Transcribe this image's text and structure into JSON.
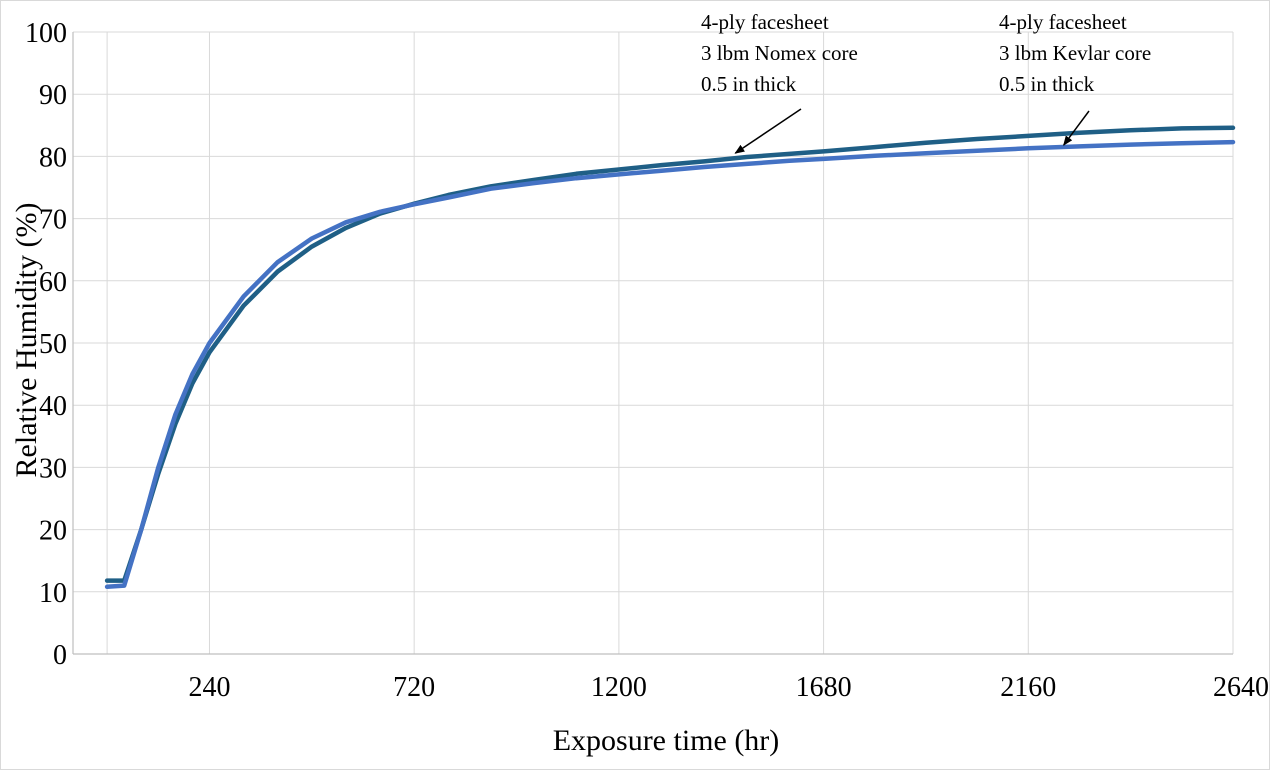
{
  "chart_data": {
    "type": "line",
    "xlabel": "Exposure time (hr)",
    "ylabel": "Relative Humidity (%)",
    "xlim": [
      -80,
      2640
    ],
    "ylim": [
      0,
      100
    ],
    "x_ticks": [
      240,
      720,
      1200,
      1680,
      2160,
      2640
    ],
    "y_ticks": [
      0,
      10,
      20,
      30,
      40,
      50,
      60,
      70,
      80,
      90,
      100
    ],
    "grid": true,
    "series": [
      {
        "color": "#1f5f86",
        "points": [
          [
            0,
            11.8
          ],
          [
            40,
            11.8
          ],
          [
            80,
            20
          ],
          [
            120,
            29
          ],
          [
            160,
            37
          ],
          [
            200,
            43.5
          ],
          [
            240,
            48.5
          ],
          [
            320,
            56
          ],
          [
            400,
            61.5
          ],
          [
            480,
            65.5
          ],
          [
            560,
            68.5
          ],
          [
            640,
            70.8
          ],
          [
            720,
            72.4
          ],
          [
            800,
            73.8
          ],
          [
            900,
            75.2
          ],
          [
            1000,
            76.2
          ],
          [
            1100,
            77.2
          ],
          [
            1200,
            77.9
          ],
          [
            1300,
            78.6
          ],
          [
            1400,
            79.2
          ],
          [
            1500,
            79.9
          ],
          [
            1600,
            80.4
          ],
          [
            1680,
            80.8
          ],
          [
            1800,
            81.5
          ],
          [
            1920,
            82.2
          ],
          [
            2040,
            82.8
          ],
          [
            2160,
            83.3
          ],
          [
            2280,
            83.8
          ],
          [
            2400,
            84.2
          ],
          [
            2520,
            84.5
          ],
          [
            2640,
            84.6
          ]
        ]
      },
      {
        "color": "#4472c4",
        "points": [
          [
            0,
            10.8
          ],
          [
            40,
            11
          ],
          [
            80,
            20
          ],
          [
            120,
            30
          ],
          [
            160,
            38.5
          ],
          [
            200,
            45
          ],
          [
            240,
            50
          ],
          [
            320,
            57.5
          ],
          [
            400,
            63
          ],
          [
            480,
            66.8
          ],
          [
            560,
            69.4
          ],
          [
            640,
            71.1
          ],
          [
            720,
            72.3
          ],
          [
            800,
            73.4
          ],
          [
            900,
            74.8
          ],
          [
            1000,
            75.7
          ],
          [
            1100,
            76.5
          ],
          [
            1200,
            77.1
          ],
          [
            1300,
            77.7
          ],
          [
            1400,
            78.3
          ],
          [
            1500,
            78.8
          ],
          [
            1600,
            79.3
          ],
          [
            1680,
            79.6
          ],
          [
            1800,
            80.1
          ],
          [
            1920,
            80.5
          ],
          [
            2040,
            80.9
          ],
          [
            2160,
            81.3
          ],
          [
            2280,
            81.6
          ],
          [
            2400,
            81.9
          ],
          [
            2520,
            82.1
          ],
          [
            2640,
            82.3
          ]
        ]
      }
    ],
    "annotations": [
      {
        "id": "nomex",
        "lines": [
          "4-ply facesheet",
          "3 lbm Nomex core",
          "0.5 in thick"
        ],
        "arrow_to": [
          1480,
          80.2
        ]
      },
      {
        "id": "kevlar",
        "lines": [
          "4-ply facesheet",
          "3 lbm Kevlar core",
          "0.5 in thick"
        ],
        "arrow_to": [
          2250,
          81.5
        ]
      }
    ]
  }
}
